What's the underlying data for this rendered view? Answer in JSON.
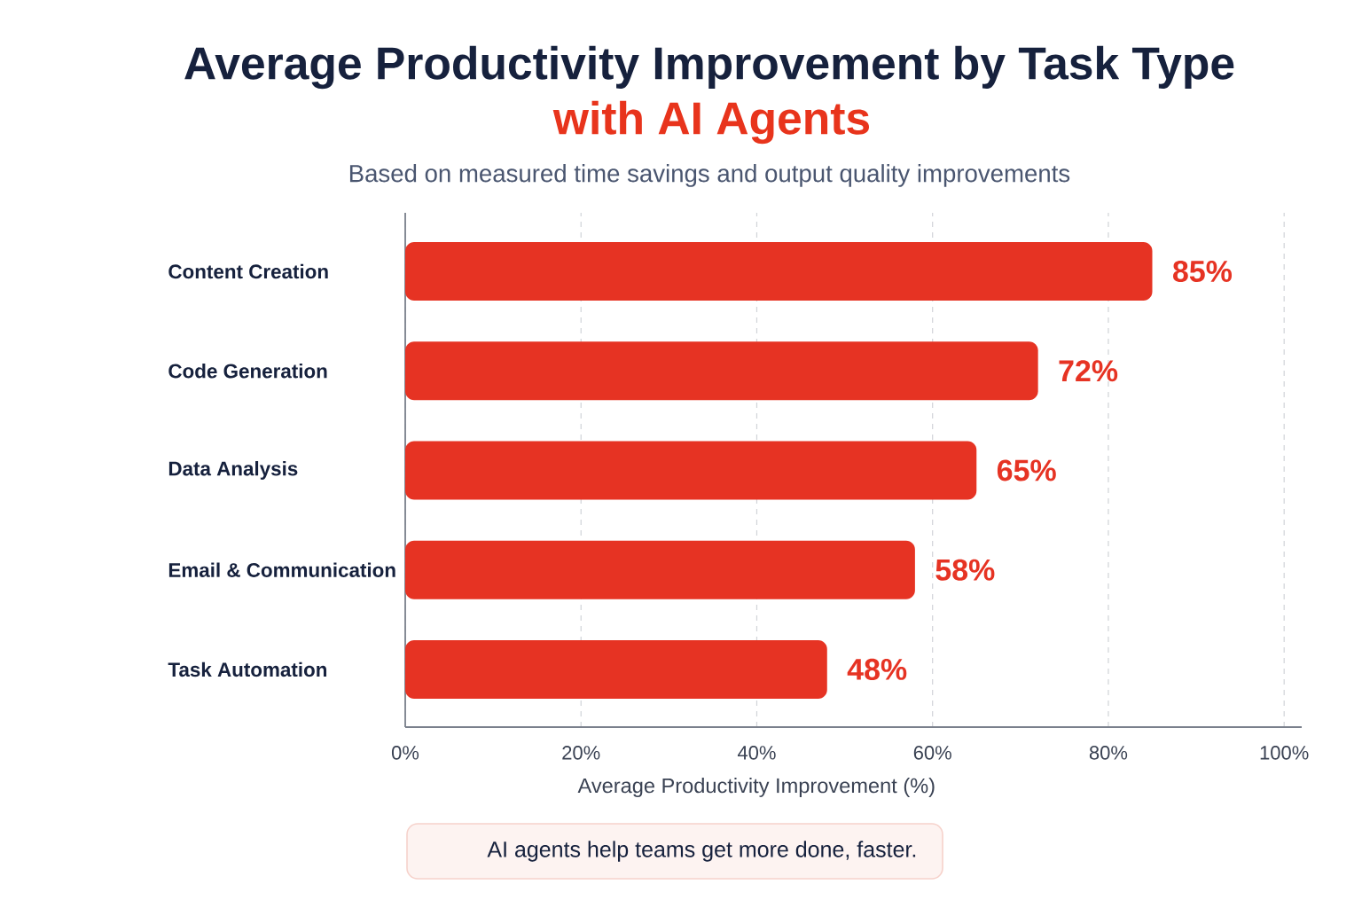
{
  "chart_data": {
    "type": "bar",
    "orientation": "horizontal",
    "title": "Average Productivity Improvement by Task Type",
    "subtitle": "with AI Agents",
    "xlabel": "Average Productivity Improvement (%)",
    "annotations": [
      "Based on measured time savings and output quality improvements",
      "AI agents help teams get more done, faster."
    ],
    "categories": [
      "Content Creation",
      "Code Generation",
      "Data Analysis",
      "Email & Communication",
      "Task Automation"
    ],
    "values": [
      85,
      72,
      65,
      58,
      48
    ],
    "value_labels": [
      "85%",
      "72%",
      "65%",
      "58%",
      "48%"
    ],
    "color": "#e63323",
    "xlim": [
      0,
      102
    ],
    "xticks": [
      {
        "value": 0,
        "label": "0%"
      },
      {
        "value": 20,
        "label": "20%"
      },
      {
        "value": 40,
        "label": "40%"
      },
      {
        "value": 60,
        "label": "60%"
      },
      {
        "value": 80,
        "label": "80%"
      },
      {
        "value": 100,
        "label": "100%"
      }
    ],
    "grid": "x"
  }
}
